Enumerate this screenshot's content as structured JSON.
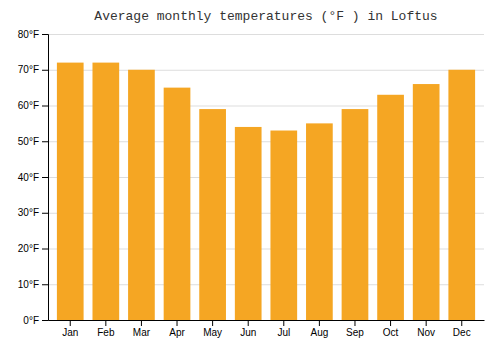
{
  "chart_data": {
    "type": "bar",
    "title": "Average monthly temperatures (°F ) in Loftus",
    "categories": [
      "Jan",
      "Feb",
      "Mar",
      "Apr",
      "May",
      "Jun",
      "Jul",
      "Aug",
      "Sep",
      "Oct",
      "Nov",
      "Dec"
    ],
    "values": [
      72,
      72,
      70,
      65,
      59,
      54,
      53,
      55,
      59,
      63,
      66,
      70
    ],
    "color": "#F5A623",
    "ylim": [
      0,
      80
    ],
    "yticks": [
      {
        "value": 0,
        "label": "0°F"
      },
      {
        "value": 10,
        "label": "10°F"
      },
      {
        "value": 20,
        "label": "20°F"
      },
      {
        "value": 30,
        "label": "30°F"
      },
      {
        "value": 40,
        "label": "40°F"
      },
      {
        "value": 50,
        "label": "50°F"
      },
      {
        "value": 60,
        "label": "60°F"
      },
      {
        "value": 70,
        "label": "70°F"
      },
      {
        "value": 80,
        "label": "80°F"
      }
    ],
    "grid": true
  }
}
